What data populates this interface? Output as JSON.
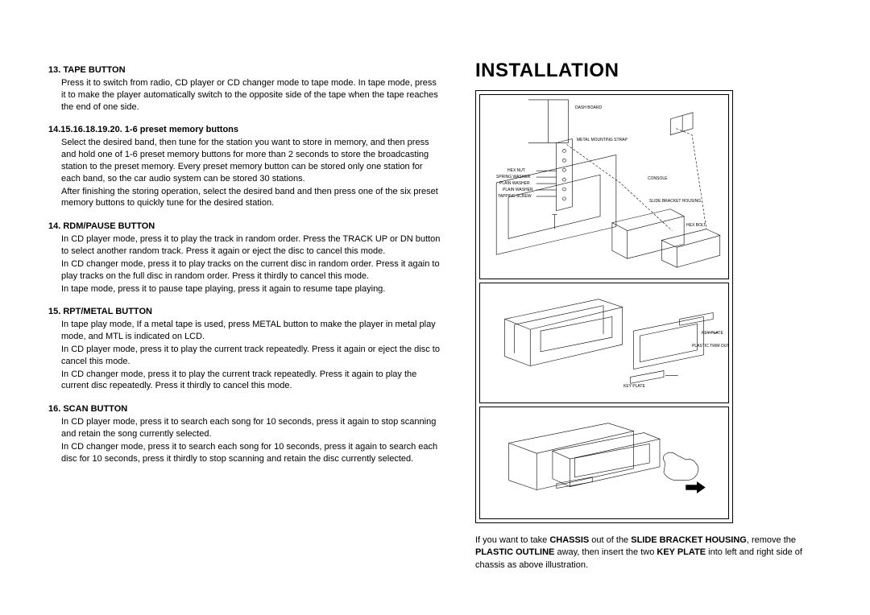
{
  "left": {
    "s13": {
      "head": "13. TAPE BUTTON",
      "p1": "Press it to switch from radio, CD player  or CD changer mode to tape mode. In tape mode, press it to make the player automatically switch to the opposite side of the tape when the tape reaches the end of one side."
    },
    "s14g": {
      "head": "14.15.16.18.19.20. 1-6 preset memory buttons",
      "p1": "Select the desired band, then tune for the station you want to store in memory, and then press and hold one of 1-6 preset memory buttons for more than 2 seconds to store the broadcasting station to the preset memory. Every preset memory button can be stored only one station for each band, so the car audio system can be stored 30 stations.",
      "p2": "After finishing the storing operation, select the desired band and then press one of the six preset memory buttons to quickly tune for the desired station."
    },
    "s14": {
      "head": "14. RDM/PAUSE BUTTON",
      "p1": "In CD player mode, press it to play the track in random order. Press the TRACK UP or DN button to select another random track. Press it again or eject the disc to cancel this mode.",
      "p2": "In CD changer mode, press it to play tracks on the current disc in random order. Press it again to play tracks on the full disc in random order. Press it thirdly to cancel this mode.",
      "p3": "In tape mode, press it to pause tape playing, press it again to resume tape playing."
    },
    "s15": {
      "head": "15. RPT/METAL BUTTON",
      "p1": "In tape play mode, If a metal tape is used, press METAL button to make the player in metal play mode, and MTL is indicated on LCD.",
      "p2": "In CD player mode, press it to play the current track repeatedly. Press it again or eject the disc to cancel this mode.",
      "p3": "In CD changer mode, press it to play the current track repeatedly. Press it again to play the current disc repeatedly. Press it thirdly to cancel this mode."
    },
    "s16": {
      "head": "16. SCAN BUTTON",
      "p1": "In CD player mode, press it to search each song for 10 seconds, press it again to stop scanning and retain the song currently selected.",
      "p2": "In CD changer mode, press it to search each song for 10 seconds, press it again to search each disc for 10 seconds, press it thirdly to stop scanning and retain the disc currently selected."
    }
  },
  "right": {
    "title": "INSTALLATION",
    "labels": {
      "dash_board": "DASH BOARD",
      "metal_strap": "METAL MOUNTING STRAP",
      "hex_nut": "HEX NUT",
      "spring_washer": "SPRING WASHER",
      "plain_washer": "PLAIN WASHER",
      "plain_washer2": "PLAIN WASHER",
      "tapping_screw": "TAPPING SCREW",
      "console": "CONSOLE",
      "slide_bracket": "SLIDE BRACKET HOUSING",
      "hex_bolt": "HEX BOLT",
      "key_plate1": "KEY PLATE",
      "key_plate2": "KEY PLATE",
      "plastic_trim": "PLASTIC TRIM OUT"
    },
    "footnote_html": "If you want to take <b>CHASSIS</b> out of the <b>SLIDE BRACKET HOUSING</b>, remove the <b>PLASTIC OUTLINE</b> away, then insert the two <b>KEY PLATE</b> into left and right side of chassis as above illustration."
  }
}
